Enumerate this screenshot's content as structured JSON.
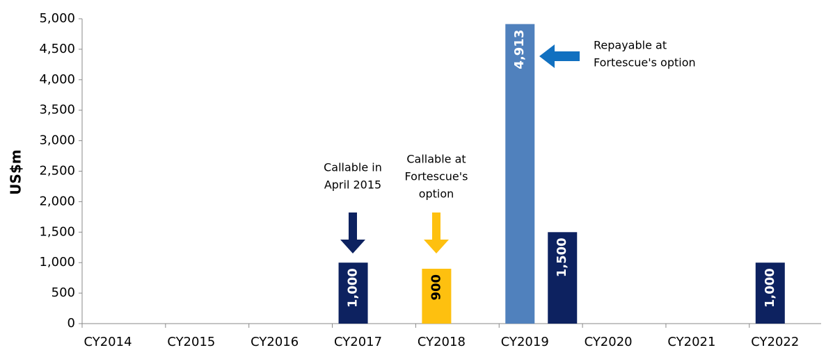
{
  "chart_data": {
    "type": "bar",
    "y_label": "US$m",
    "categories": [
      "CY2014",
      "CY2015",
      "CY2016",
      "CY2017",
      "CY2018",
      "CY2019",
      "CY2020",
      "CY2021",
      "CY2022"
    ],
    "series": [
      {
        "color": "#5081bd",
        "values": [
          null,
          null,
          null,
          null,
          null,
          4913,
          null,
          null,
          null
        ],
        "value_labels": [
          null,
          null,
          null,
          null,
          null,
          "4,913",
          null,
          null,
          null
        ],
        "label_color": "#ffffff"
      },
      {
        "color": "#0d2260",
        "values": [
          null,
          null,
          null,
          1000,
          null,
          1500,
          null,
          null,
          1000
        ],
        "value_labels": [
          null,
          null,
          null,
          "1,000",
          null,
          "1,500",
          null,
          null,
          "1,000"
        ],
        "label_color": "#ffffff"
      },
      {
        "color": "#fec00f",
        "values": [
          null,
          null,
          null,
          null,
          900,
          null,
          null,
          null,
          null
        ],
        "value_labels": [
          null,
          null,
          null,
          null,
          "900",
          null,
          null,
          null,
          null
        ],
        "label_color": "#000000"
      }
    ],
    "ylim": [
      0,
      5000
    ],
    "yticks": [
      0,
      500,
      {
        "value": 1000,
        "label": "1,000"
      },
      {
        "value": 1500,
        "label": "1,500"
      },
      {
        "value": 2000,
        "label": "2,000"
      },
      {
        "value": 2500,
        "label": "2,500"
      },
      {
        "value": 3000,
        "label": "3,000"
      },
      {
        "value": 3500,
        "label": "3,500"
      },
      {
        "value": 4000,
        "label": "4,000"
      },
      {
        "value": 4500,
        "label": "4,500"
      },
      {
        "value": 5000,
        "label": "5,000"
      }
    ],
    "grid": false,
    "annotations": [
      {
        "lines": [
          "Callable in",
          "April 2015"
        ]
      },
      {
        "lines": [
          "Callable at",
          "Fortescue's",
          "option"
        ]
      },
      {
        "lines": [
          "Repayable at",
          "Fortescue's option"
        ]
      }
    ]
  }
}
